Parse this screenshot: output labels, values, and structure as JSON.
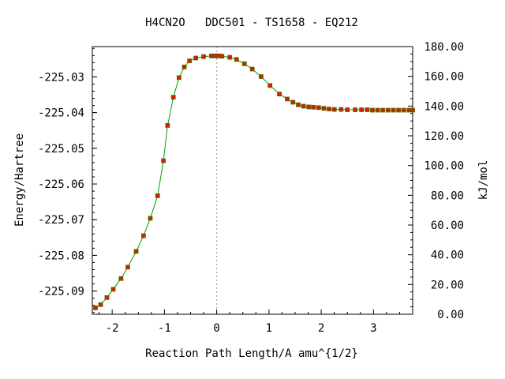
{
  "chart_data": {
    "type": "scatter",
    "title": "H4CN2O   DDC501 - TS1658 - EQ212",
    "xlabel": "Reaction Path Length/A amu^{1/2}",
    "ylabel": "Energy/Hartree",
    "y2label": "kJ/mol",
    "xlim": [
      -2.38,
      3.75
    ],
    "ylim": [
      -225.0965,
      -225.0215
    ],
    "y2lim": [
      0,
      180
    ],
    "x_ticks": [
      "-2",
      "-1",
      "0",
      "1",
      "2",
      "3"
    ],
    "y_ticks": [
      "-225.03",
      "-225.04",
      "-225.05",
      "-225.06",
      "-225.07",
      "-225.08",
      "-225.09"
    ],
    "y2_ticks": [
      "0.00",
      "20.00",
      "40.00",
      "60.00",
      "80.00",
      "100.00",
      "120.00",
      "140.00",
      "160.00",
      "180.00"
    ],
    "ts_marker_x": 0,
    "line_color": "#00a000",
    "point_color": "#cc2200",
    "point_outline": "#556b00",
    "grid": false,
    "series": [
      {
        "x": [
          -2.32,
          -2.22,
          -2.1,
          -1.98,
          -1.83,
          -1.7,
          -1.54,
          -1.4,
          -1.27,
          -1.13,
          -1.02,
          -0.94,
          -0.83,
          -0.72,
          -0.62,
          -0.52,
          -0.4,
          -0.25,
          -0.1,
          -0.05,
          0.0,
          0.05,
          0.1,
          0.25,
          0.38,
          0.53,
          0.68,
          0.85,
          1.02,
          1.2,
          1.35,
          1.46,
          1.56,
          1.66,
          1.76,
          1.85,
          1.95,
          2.05,
          2.15,
          2.25,
          2.38,
          2.5,
          2.65,
          2.77,
          2.88,
          2.98,
          3.08,
          3.18,
          3.28,
          3.38,
          3.48,
          3.58,
          3.68,
          3.75
        ],
        "y": [
          -225.0947,
          -225.0938,
          -225.0918,
          -225.0895,
          -225.0865,
          -225.0833,
          -225.0789,
          -225.0745,
          -225.0696,
          -225.0633,
          -225.0535,
          -225.0436,
          -225.0357,
          -225.0302,
          -225.0272,
          -225.0255,
          -225.0247,
          -225.0243,
          -225.0241,
          -225.0241,
          -225.0241,
          -225.0241,
          -225.0242,
          -225.0245,
          -225.0251,
          -225.0263,
          -225.0278,
          -225.0299,
          -225.0324,
          -225.0348,
          -225.0362,
          -225.0371,
          -225.0378,
          -225.0382,
          -225.0384,
          -225.0385,
          -225.0386,
          -225.0388,
          -225.039,
          -225.0391,
          -225.0391,
          -225.0392,
          -225.0392,
          -225.0392,
          -225.0392,
          -225.0393,
          -225.0393,
          -225.0393,
          -225.0393,
          -225.0393,
          -225.0393,
          -225.0393,
          -225.0393,
          -225.0393
        ]
      }
    ]
  }
}
